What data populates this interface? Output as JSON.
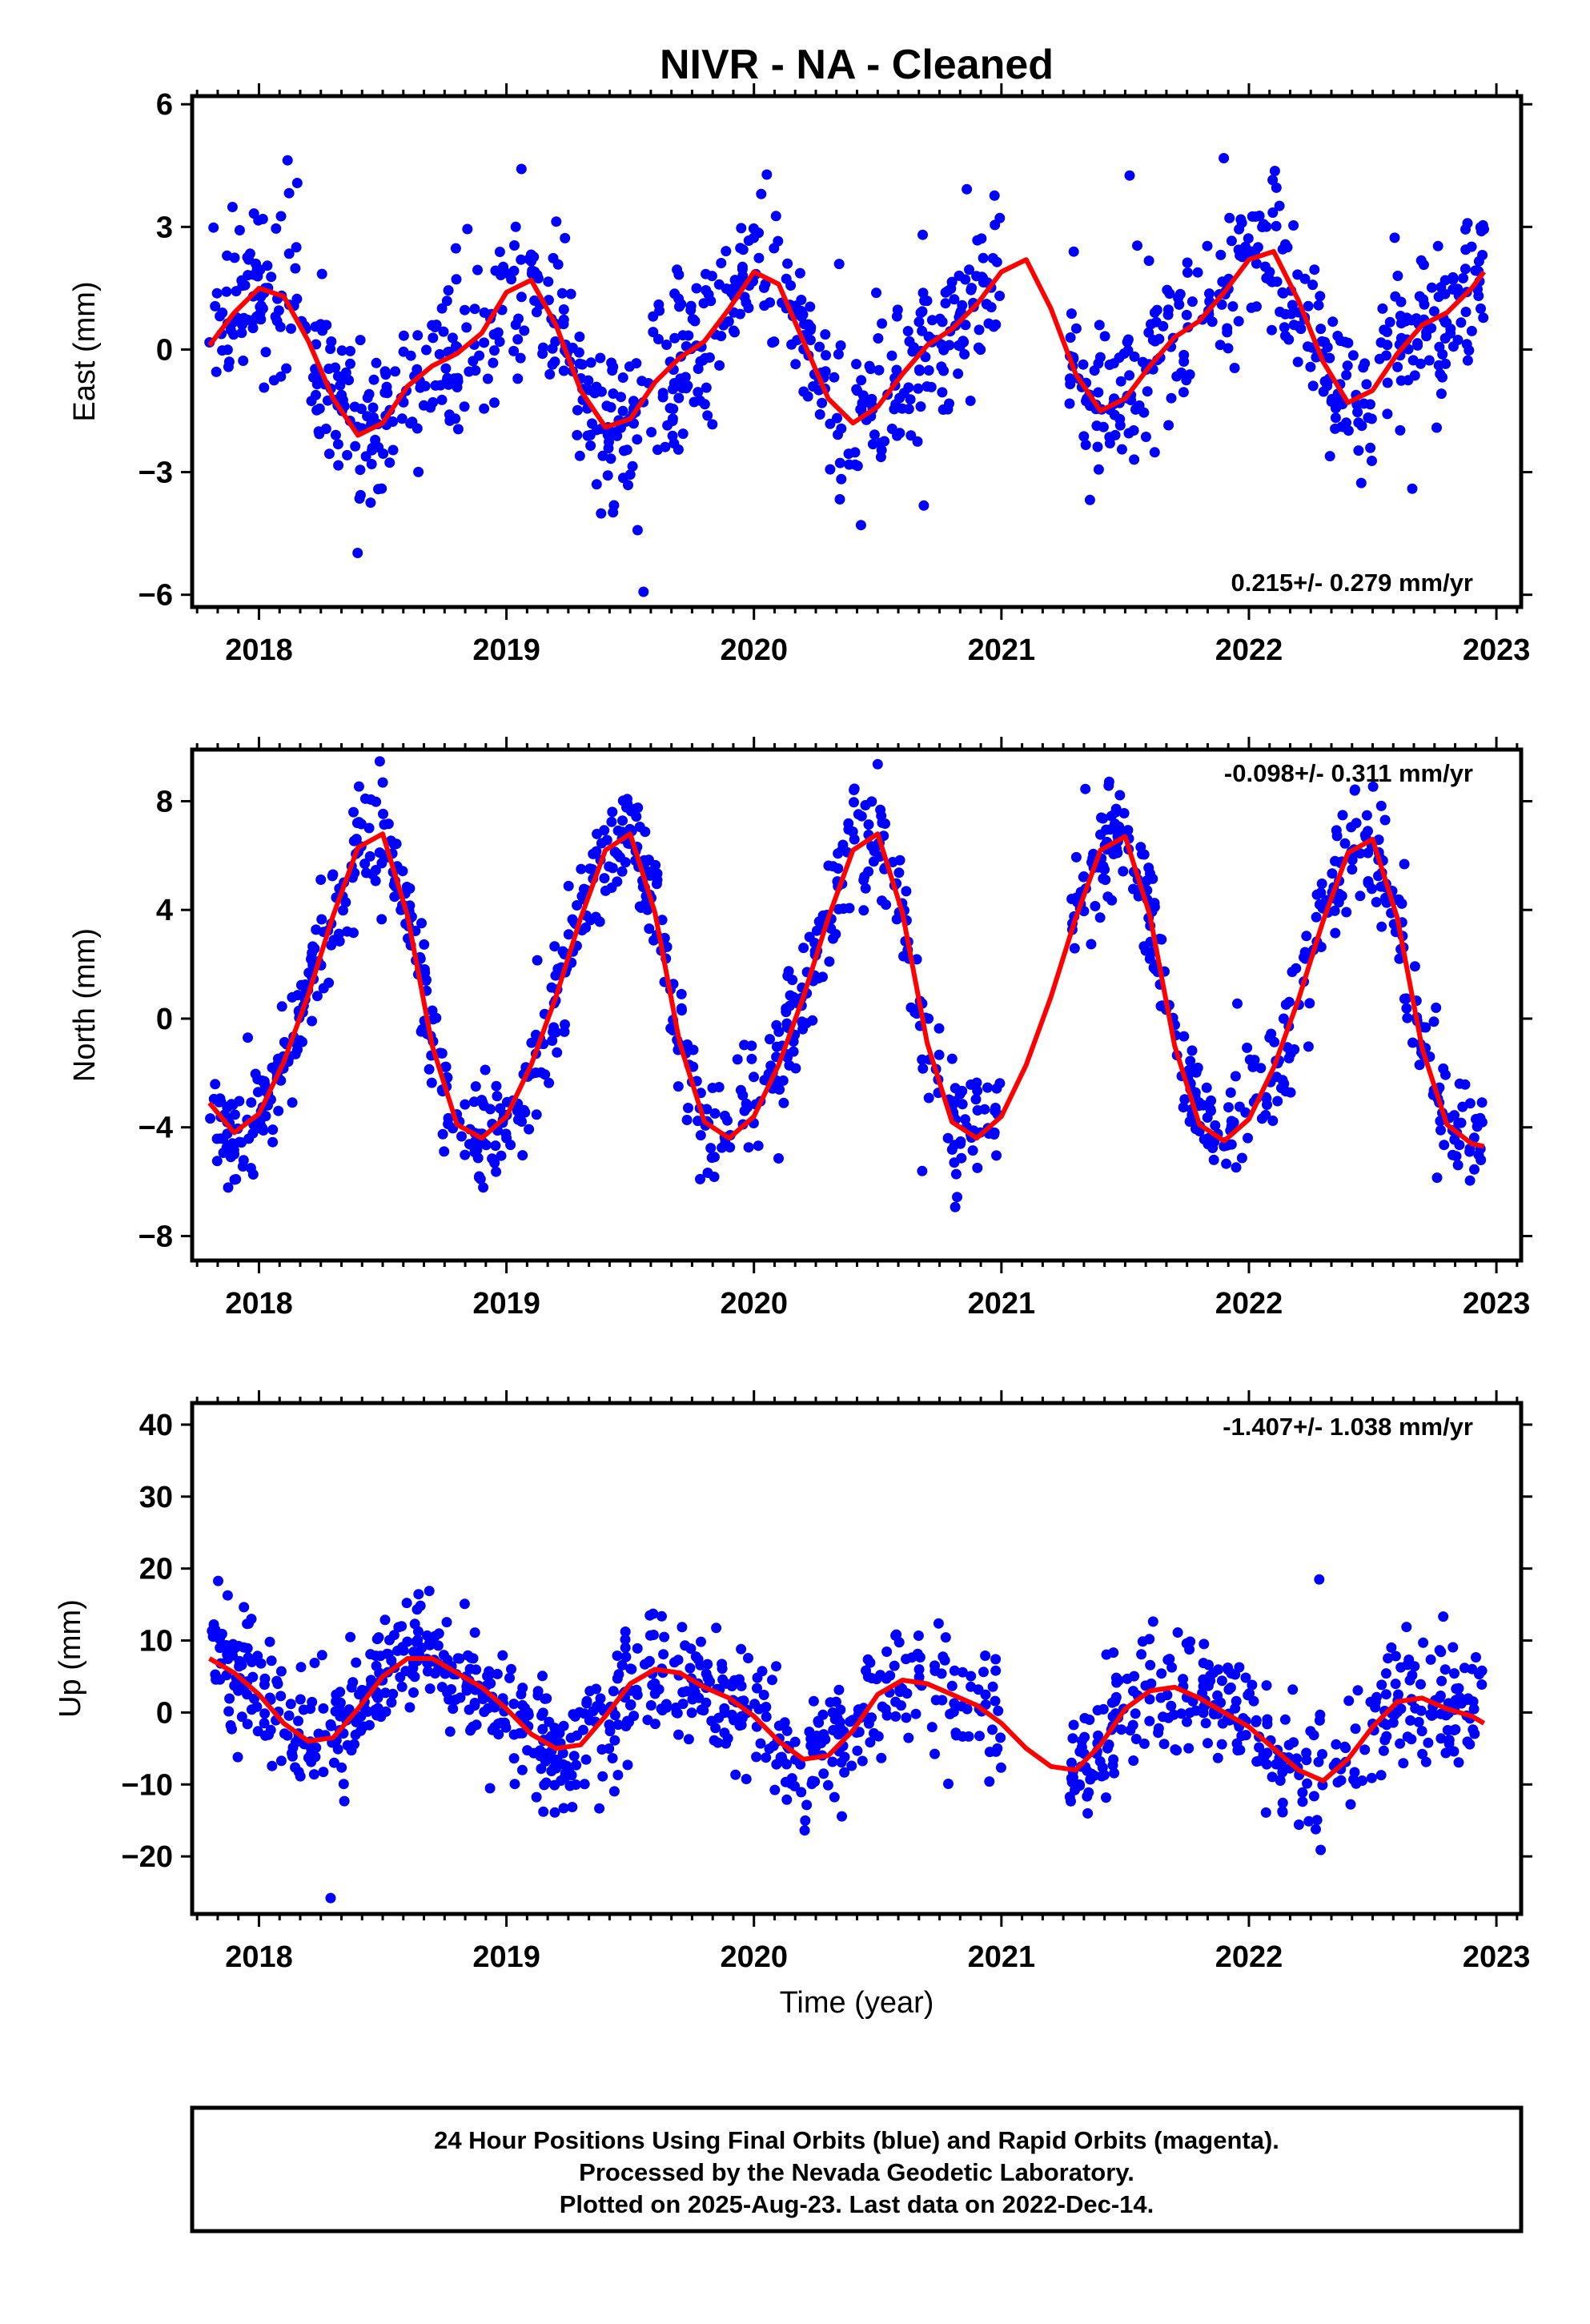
{
  "title": "NIVR  - NA - Cleaned",
  "colors": {
    "points": "#0000ff",
    "fit": "#ff0000",
    "frame": "#000000"
  },
  "chart_data": [
    {
      "type": "scatter",
      "ylabel": "East (mm)",
      "xlabel": "",
      "rate": "0.215+/- 0.279 mm/yr",
      "xlim": [
        2017.73,
        2023.1
      ],
      "ylim": [
        -6.3,
        6.2
      ],
      "xticks": [
        "2018",
        "2019",
        "2020",
        "2021",
        "2022",
        "2023"
      ],
      "yticks": [
        "6",
        "3",
        "0",
        "−3",
        "−6"
      ],
      "ytick_values": [
        6,
        3,
        0,
        -3,
        -6
      ],
      "data_span": [
        2017.8,
        2022.95
      ],
      "gap": [
        2021.0,
        2021.27
      ],
      "fit": {
        "x": [
          2017.8,
          2017.9,
          2018.0,
          2018.1,
          2018.2,
          2018.3,
          2018.4,
          2018.5,
          2018.6,
          2018.7,
          2018.8,
          2018.9,
          2019.0,
          2019.1,
          2019.2,
          2019.3,
          2019.4,
          2019.5,
          2019.6,
          2019.7,
          2019.8,
          2019.9,
          2020.0,
          2020.1,
          2020.2,
          2020.3,
          2020.4,
          2020.5,
          2020.6,
          2020.7,
          2020.8,
          2020.9,
          2021.0,
          2021.1,
          2021.2,
          2021.3,
          2021.4,
          2021.5,
          2021.6,
          2021.7,
          2021.8,
          2021.9,
          2022.0,
          2022.1,
          2022.2,
          2022.3,
          2022.4,
          2022.5,
          2022.6,
          2022.7,
          2022.8,
          2022.9,
          2022.95
        ],
        "y": [
          0.1,
          0.9,
          1.5,
          1.3,
          0.2,
          -1.2,
          -2.1,
          -1.8,
          -0.9,
          -0.4,
          -0.1,
          0.4,
          1.4,
          1.7,
          0.6,
          -1.0,
          -1.9,
          -1.7,
          -0.8,
          -0.2,
          0.2,
          1.0,
          1.9,
          1.6,
          0.2,
          -1.2,
          -1.8,
          -1.4,
          -0.6,
          0.1,
          0.5,
          1.1,
          1.9,
          2.2,
          1.0,
          -0.6,
          -1.5,
          -1.2,
          -0.4,
          0.3,
          0.7,
          1.4,
          2.2,
          2.4,
          1.2,
          -0.3,
          -1.3,
          -1.0,
          -0.1,
          0.6,
          0.9,
          1.5,
          1.9
        ]
      },
      "scatter": {
        "seed": 11,
        "count": 1120,
        "noise": 0.95,
        "outlier_rate": 0.03,
        "outlier_scale": 2.2
      }
    },
    {
      "type": "scatter",
      "ylabel": "North (mm)",
      "xlabel": "",
      "rate": "-0.098+/- 0.311 mm/yr",
      "xlim": [
        2017.73,
        2023.1
      ],
      "ylim": [
        -8.9,
        9.9
      ],
      "xticks": [
        "2018",
        "2019",
        "2020",
        "2021",
        "2022",
        "2023"
      ],
      "yticks": [
        "8",
        "4",
        "0",
        "−4",
        "−8"
      ],
      "ytick_values": [
        8,
        4,
        0,
        -4,
        -8
      ],
      "data_span": [
        2017.8,
        2022.95
      ],
      "gap": [
        2021.0,
        2021.27
      ],
      "fit": {
        "x": [
          2017.8,
          2017.9,
          2018.0,
          2018.1,
          2018.2,
          2018.3,
          2018.4,
          2018.5,
          2018.6,
          2018.7,
          2018.8,
          2018.9,
          2019.0,
          2019.1,
          2019.2,
          2019.3,
          2019.4,
          2019.5,
          2019.6,
          2019.7,
          2019.8,
          2019.9,
          2020.0,
          2020.1,
          2020.2,
          2020.3,
          2020.4,
          2020.5,
          2020.6,
          2020.7,
          2020.8,
          2020.9,
          2021.0,
          2021.1,
          2021.2,
          2021.3,
          2021.4,
          2021.5,
          2021.6,
          2021.7,
          2021.8,
          2021.9,
          2022.0,
          2022.1,
          2022.2,
          2022.3,
          2022.4,
          2022.5,
          2022.6,
          2022.7,
          2022.8,
          2022.9,
          2022.95
        ],
        "y": [
          -3.1,
          -4.2,
          -3.5,
          -1.6,
          0.9,
          3.8,
          6.3,
          6.8,
          3.8,
          -1.0,
          -3.9,
          -4.4,
          -3.6,
          -1.7,
          0.8,
          3.7,
          6.2,
          6.8,
          3.9,
          -0.9,
          -3.8,
          -4.4,
          -3.6,
          -1.7,
          0.8,
          3.7,
          6.2,
          6.8,
          3.9,
          -0.9,
          -3.8,
          -4.4,
          -3.6,
          -1.7,
          0.8,
          3.7,
          6.2,
          6.7,
          3.8,
          -1.0,
          -3.9,
          -4.5,
          -3.7,
          -1.8,
          0.7,
          3.6,
          6.1,
          6.6,
          3.7,
          -1.1,
          -3.9,
          -4.6,
          -4.7
        ]
      },
      "scatter": {
        "seed": 23,
        "count": 1120,
        "noise": 1.05,
        "outlier_rate": 0.02,
        "outlier_scale": 2.5
      }
    },
    {
      "type": "scatter",
      "ylabel": "Up (mm)",
      "xlabel": "Time (year)",
      "rate": "-1.407+/- 1.038 mm/yr",
      "xlim": [
        2017.73,
        2023.1
      ],
      "ylim": [
        -28,
        43
      ],
      "xticks": [
        "2018",
        "2019",
        "2020",
        "2021",
        "2022",
        "2023"
      ],
      "yticks": [
        "40",
        "30",
        "20",
        "10",
        "0",
        "−10",
        "−20"
      ],
      "ytick_values": [
        40,
        30,
        20,
        10,
        0,
        -10,
        -20
      ],
      "data_span": [
        2017.8,
        2022.95
      ],
      "gap": [
        2021.0,
        2021.27
      ],
      "fit": {
        "x": [
          2017.8,
          2017.9,
          2018.0,
          2018.1,
          2018.2,
          2018.3,
          2018.4,
          2018.5,
          2018.6,
          2018.7,
          2018.8,
          2018.9,
          2019.0,
          2019.1,
          2019.2,
          2019.3,
          2019.4,
          2019.5,
          2019.6,
          2019.7,
          2019.8,
          2019.9,
          2020.0,
          2020.1,
          2020.2,
          2020.3,
          2020.4,
          2020.5,
          2020.6,
          2020.7,
          2020.8,
          2020.9,
          2021.0,
          2021.1,
          2021.2,
          2021.3,
          2021.4,
          2021.5,
          2021.6,
          2021.7,
          2021.8,
          2021.9,
          2022.0,
          2022.1,
          2022.2,
          2022.3,
          2022.4,
          2022.5,
          2022.6,
          2022.7,
          2022.8,
          2022.9,
          2022.95
        ],
        "y": [
          7.5,
          5.5,
          2.5,
          -1.5,
          -4.0,
          -3.5,
          0.5,
          5.0,
          7.5,
          7.5,
          5.5,
          3.5,
          0.5,
          -3.0,
          -5.0,
          -4.5,
          -0.5,
          4.0,
          6.0,
          5.5,
          3.5,
          2.0,
          -0.5,
          -4.0,
          -6.5,
          -6.0,
          -2.5,
          2.5,
          4.5,
          4.0,
          2.5,
          1.0,
          -1.5,
          -5.0,
          -7.5,
          -8.0,
          -4.5,
          0.5,
          3.0,
          3.5,
          2.0,
          0.0,
          -2.0,
          -5.0,
          -8.0,
          -9.5,
          -6.5,
          -2.0,
          1.5,
          2.0,
          0.5,
          -0.5,
          -1.5
        ]
      },
      "scatter": {
        "seed": 37,
        "count": 1120,
        "noise": 4.2,
        "outlier_rate": 0.025,
        "outlier_scale": 2.6
      }
    }
  ],
  "footer": {
    "line1": "24 Hour Positions Using Final Orbits (blue) and Rapid Orbits (magenta).",
    "line2": "Processed by the Nevada Geodetic Laboratory.",
    "line3": "Plotted on 2025-Aug-23. Last data on 2022-Dec-14."
  }
}
